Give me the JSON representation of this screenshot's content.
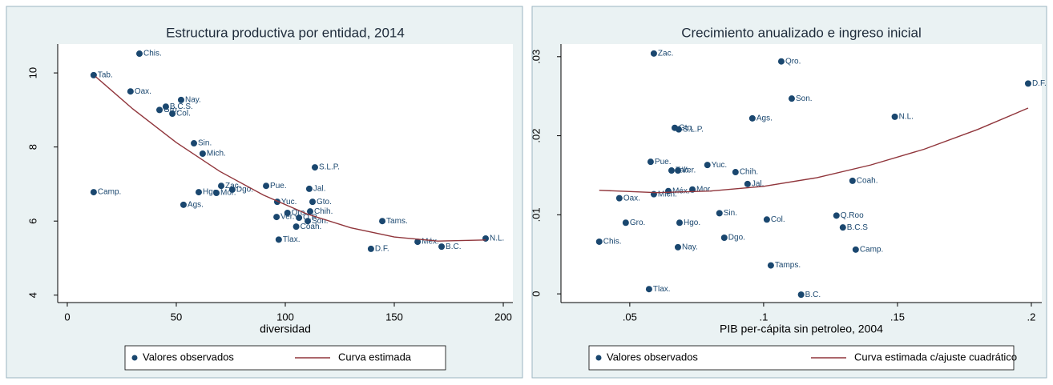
{
  "chart_data": [
    {
      "type": "scatter",
      "title": "Estructura productiva por entidad, 2014",
      "x_label": "diversidad",
      "xlim": [
        -4.4,
        204.4
      ],
      "ylim": [
        3.8,
        10.78
      ],
      "xticks": [
        0,
        50,
        100,
        150,
        200
      ],
      "yticks": [
        4,
        6,
        8,
        10
      ],
      "grid": false,
      "series": [
        {
          "name": "Valores observados",
          "color": "#1a476f",
          "labels": [
            "Chis.",
            "Tab.",
            "Oax.",
            "Nay.",
            "B.C.S.",
            "Gro.",
            "Col.",
            "Sin.",
            "Mich.",
            "S.L.P.",
            "Camp.",
            "Zac.",
            "Mor.",
            "Hgo.",
            "Dgo.",
            "Pue.",
            "Jal.",
            "Ags.",
            "Yuc.",
            "Gto.",
            "Qro.",
            "Ver.",
            "Chih.",
            "Q.R.",
            "Son.",
            "Coah.",
            "Tams.",
            "Tlax.",
            "D.F.",
            "Méx.",
            "B.C.",
            "N.L."
          ],
          "x": [
            33.1,
            12.1,
            29,
            52.2,
            45.2,
            42.3,
            48.2,
            58.1,
            62.1,
            113.6,
            12.1,
            70.6,
            68.4,
            60.3,
            75.7,
            91.2,
            111,
            53.3,
            96.3,
            112.5,
            101,
            96,
            111.4,
            106.3,
            110.3,
            105,
            144.5,
            97,
            139.3,
            160.7,
            171.7,
            191.9
          ],
          "values": [
            10.52,
            9.94,
            9.5,
            9.27,
            9.09,
            9.0,
            8.9,
            8.1,
            7.82,
            7.45,
            6.78,
            6.95,
            6.76,
            6.78,
            6.85,
            6.95,
            6.87,
            6.44,
            6.52,
            6.52,
            6.22,
            6.11,
            6.26,
            6.09,
            6.0,
            5.85,
            6.0,
            5.5,
            5.25,
            5.44,
            5.31,
            5.53
          ]
        },
        {
          "name": "Curva estimada",
          "color": "#90353b",
          "type": "line",
          "x": [
            13,
            30,
            50,
            70,
            90,
            110,
            130,
            150,
            170,
            192
          ],
          "values": [
            9.9,
            9.03,
            8.12,
            7.34,
            6.7,
            6.19,
            5.82,
            5.57,
            5.46,
            5.49
          ]
        }
      ]
    },
    {
      "type": "scatter",
      "title": "Crecimiento anualizado e ingreso inicial",
      "x_label": "PIB per-cápita sin petroleo, 2004",
      "xlim": [
        0.0243,
        0.2039
      ],
      "ylim": [
        -0.0011,
        0.0316
      ],
      "xticks": [
        {
          "value": 0.05,
          "label": ".05"
        },
        {
          "value": 0.1,
          "label": ".1"
        },
        {
          "value": 0.15,
          "label": ".15"
        },
        {
          "value": 0.2,
          "label": ".2"
        }
      ],
      "yticks": [
        0,
        {
          "value": 0.01,
          "label": ".01"
        },
        {
          "value": 0.02,
          "label": ".02"
        },
        {
          "value": 0.03,
          "label": ".03"
        }
      ],
      "grid": false,
      "series": [
        {
          "name": "Valores observados",
          "color": "#1a476f",
          "labels": [
            "Zac.",
            "Qro.",
            "D.F.",
            "Son.",
            "N.L.",
            "Ags.",
            "Gto.",
            "S.L.P.",
            "Pue.",
            "Yuc.",
            "Tab.",
            "Ver.",
            "Chih.",
            "Jal.",
            "Coah.",
            "Mich.",
            "Méx.",
            "Mor.",
            "Oax.",
            "Sin.",
            "Col.",
            "Q.Roo",
            "Gro.",
            "Hgo.",
            "B.C.S",
            "Chis.",
            "Dgo.",
            "Nay.",
            "Camp.",
            "Tamps.",
            "Tlax.",
            "B.C."
          ],
          "x": [
            0.059,
            0.1066,
            0.1988,
            0.1105,
            0.149,
            0.0958,
            0.0668,
            0.0683,
            0.0578,
            0.079,
            0.0656,
            0.068,
            0.0895,
            0.094,
            0.1332,
            0.059,
            0.0644,
            0.0734,
            0.0461,
            0.0835,
            0.1012,
            0.1272,
            0.0485,
            0.0686,
            0.1296,
            0.0386,
            0.0853,
            0.068,
            0.1344,
            0.1027,
            0.0572,
            0.114
          ],
          "values": [
            0.0304,
            0.0294,
            0.0266,
            0.0247,
            0.0224,
            0.0222,
            0.021,
            0.0208,
            0.0167,
            0.0163,
            0.0156,
            0.0156,
            0.0154,
            0.0139,
            0.0143,
            0.0126,
            0.013,
            0.0132,
            0.0121,
            0.0102,
            0.0094,
            0.0099,
            0.009,
            0.009,
            0.0084,
            0.0066,
            0.0071,
            0.0059,
            0.0056,
            0.0036,
            0.0006,
            -0.0001
          ]
        },
        {
          "name": "Curva estimada c/ajuste cuadrático",
          "color": "#90353b",
          "type": "line",
          "x": [
            0.0386,
            0.06,
            0.08,
            0.1,
            0.12,
            0.14,
            0.16,
            0.18,
            0.1988
          ],
          "values": [
            0.0131,
            0.0128,
            0.013,
            0.0136,
            0.0147,
            0.0163,
            0.0183,
            0.0208,
            0.0235
          ]
        }
      ]
    }
  ]
}
